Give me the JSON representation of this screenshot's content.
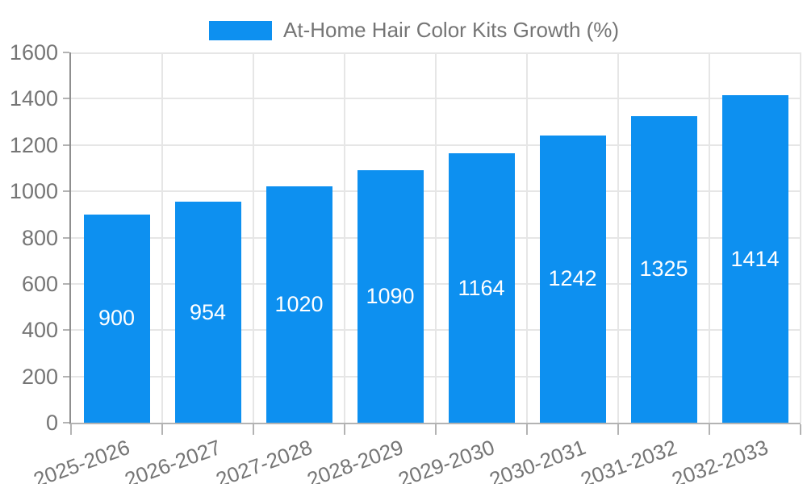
{
  "chart_data": {
    "type": "bar",
    "title": "At-Home Hair Color Kits Growth (%)",
    "series_name": "At-Home Hair Color Kits Growth (%)",
    "categories": [
      "2025-2026",
      "2026-2027",
      "2027-2028",
      "2028-2029",
      "2029-2030",
      "2030-2031",
      "2031-2032",
      "2032-2033"
    ],
    "values": [
      900,
      954,
      1020,
      1090,
      1164,
      1242,
      1325,
      1414
    ],
    "xlabel": "",
    "ylabel": "",
    "ylim": [
      0,
      1600
    ],
    "ytick_step": 200,
    "yticks": [
      0,
      200,
      400,
      600,
      800,
      1000,
      1200,
      1400,
      1600
    ],
    "grid": true,
    "legend_position": "top-center",
    "value_label_position": "inside-center",
    "x_label_rotation_deg": -20,
    "bar_color": "#0d90f0",
    "value_label_color": "#ffffff",
    "text_color": "#757575",
    "gridline_color": "#e6e6e6",
    "axis_line_color": "#8f8f8f"
  }
}
